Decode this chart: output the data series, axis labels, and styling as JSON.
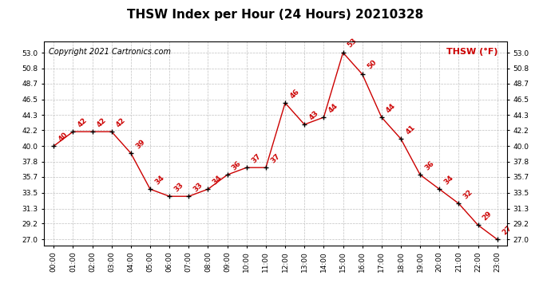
{
  "title": "THSW Index per Hour (24 Hours) 20210328",
  "copyright": "Copyright 2021 Cartronics.com",
  "legend_label": "THSW (°F)",
  "hours": [
    "00:00",
    "01:00",
    "02:00",
    "03:00",
    "04:00",
    "05:00",
    "06:00",
    "07:00",
    "08:00",
    "09:00",
    "10:00",
    "11:00",
    "12:00",
    "13:00",
    "14:00",
    "15:00",
    "16:00",
    "17:00",
    "18:00",
    "19:00",
    "20:00",
    "21:00",
    "22:00",
    "23:00"
  ],
  "values": [
    40,
    42,
    42,
    42,
    39,
    34,
    33,
    33,
    34,
    36,
    37,
    37,
    46,
    43,
    44,
    53,
    50,
    44,
    41,
    36,
    34,
    32,
    29,
    27
  ],
  "line_color": "#cc0000",
  "marker_color": "#000000",
  "label_color": "#cc0000",
  "background_color": "#ffffff",
  "grid_color": "#c0c0c0",
  "yticks": [
    27.0,
    29.2,
    31.3,
    33.5,
    35.7,
    37.8,
    40.0,
    42.2,
    44.3,
    46.5,
    48.7,
    50.8,
    53.0
  ],
  "ylim": [
    26.2,
    54.5
  ],
  "title_fontsize": 11,
  "label_fontsize": 6.5,
  "tick_fontsize": 6.5,
  "copyright_fontsize": 7
}
